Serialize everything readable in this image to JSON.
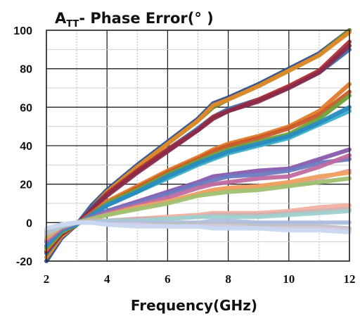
{
  "chart_data": {
    "type": "line",
    "title_main": "A",
    "title_sub": "TT",
    "title_rest": "- Phase Error(°  )",
    "xlabel": "Frequency(GHz)",
    "ylabel": "",
    "xlim": [
      2,
      12
    ],
    "ylim": [
      -20,
      100
    ],
    "x_ticks": [
      2,
      4,
      6,
      8,
      10,
      12
    ],
    "y_ticks": [
      -20,
      0,
      20,
      40,
      60,
      80,
      100
    ],
    "x_minor_grid": [
      3,
      5,
      7,
      9,
      11
    ],
    "y_minor_grid": [
      -10,
      10,
      30,
      50,
      70,
      90
    ],
    "grid": true,
    "legend": "none",
    "x": [
      2,
      2.5,
      3,
      3.5,
      4,
      5,
      6,
      7,
      7.5,
      8,
      9,
      10,
      11,
      12
    ],
    "series": [
      {
        "color": "#2f4f8f",
        "values": [
          -20,
          -8,
          -1,
          9,
          17,
          30,
          42,
          54,
          62,
          65,
          72,
          80,
          88,
          100
        ]
      },
      {
        "color": "#6a8a2a",
        "values": [
          -18,
          -7,
          -1,
          8,
          16,
          29,
          41,
          53,
          60,
          64,
          71,
          79,
          87,
          100
        ]
      },
      {
        "color": "#e08a2a",
        "values": [
          -18,
          -7,
          -1,
          8,
          16,
          29,
          41,
          53,
          61,
          64,
          71,
          79,
          87,
          99
        ]
      },
      {
        "color": "#3a6fb0",
        "values": [
          -16,
          -6,
          -1,
          8,
          15,
          27,
          38,
          49,
          55,
          59,
          64,
          70,
          78,
          90
        ]
      },
      {
        "color": "#b03030",
        "values": [
          -15,
          -6,
          -1,
          7,
          15,
          27,
          38,
          48,
          55,
          58,
          64,
          71,
          79,
          94
        ]
      },
      {
        "color": "#8a2a4a",
        "values": [
          -15,
          -6,
          -1,
          7,
          14,
          26,
          37,
          48,
          54,
          58,
          63,
          70,
          78,
          92
        ]
      },
      {
        "color": "#e07b2a",
        "values": [
          -14,
          -5,
          -1,
          5,
          11,
          19,
          27,
          34,
          38,
          41,
          45,
          50,
          58,
          72
        ]
      },
      {
        "color": "#c95a2a",
        "values": [
          -13,
          -5,
          -1,
          5,
          10,
          18,
          26,
          33,
          37,
          40,
          44,
          49,
          56,
          68
        ]
      },
      {
        "color": "#6fa03a",
        "values": [
          -13,
          -5,
          -1,
          4,
          10,
          17,
          25,
          32,
          35,
          38,
          42,
          46,
          54,
          66
        ]
      },
      {
        "color": "#3ab0c9",
        "values": [
          -12,
          -4,
          -1,
          4,
          9,
          16,
          23,
          30,
          33,
          36,
          40,
          44,
          51,
          58
        ]
      },
      {
        "color": "#2a8abf",
        "values": [
          -12,
          -4,
          -1,
          4,
          9,
          16,
          24,
          31,
          34,
          37,
          41,
          45,
          52,
          60
        ]
      },
      {
        "color": "#8a5aaf",
        "values": [
          -10,
          -3,
          0,
          3,
          6,
          11,
          16,
          21,
          24,
          25,
          27,
          28,
          33,
          38
        ]
      },
      {
        "color": "#6a7abf",
        "values": [
          -10,
          -3,
          0,
          3,
          6,
          10,
          15,
          20,
          22,
          24,
          25,
          27,
          31,
          33
        ]
      },
      {
        "color": "#c06aa0",
        "values": [
          -9,
          -3,
          0,
          2,
          5,
          9,
          13,
          18,
          20,
          21,
          23,
          24,
          29,
          35
        ]
      },
      {
        "color": "#e0a0a0",
        "values": [
          -8,
          -2,
          0,
          2,
          4,
          8,
          11,
          15,
          17,
          18,
          19,
          20,
          23,
          27
        ]
      },
      {
        "color": "#f0a060",
        "values": [
          -8,
          -2,
          0,
          2,
          4,
          8,
          11,
          15,
          17,
          18,
          19,
          21,
          24,
          26
        ]
      },
      {
        "color": "#a0c070",
        "values": [
          -7,
          -2,
          0,
          2,
          4,
          7,
          10,
          14,
          15,
          16,
          17,
          19,
          21,
          23
        ]
      },
      {
        "color": "#f0b0a0",
        "values": [
          -6,
          -2,
          0,
          1,
          1,
          2,
          3,
          4,
          5,
          5,
          5,
          6,
          8,
          9
        ]
      },
      {
        "color": "#d0b0b0",
        "values": [
          -6,
          -2,
          0,
          1,
          1,
          2,
          2,
          3,
          4,
          4,
          4,
          5,
          6,
          7
        ]
      },
      {
        "color": "#a0d0d0",
        "values": [
          -5,
          -2,
          0,
          0,
          1,
          1,
          2,
          3,
          3,
          3,
          3,
          4,
          5,
          6
        ]
      },
      {
        "color": "#b0c0e0",
        "values": [
          -5,
          -1,
          0,
          0,
          0,
          0,
          0,
          0,
          1,
          1,
          0,
          0,
          0,
          0
        ]
      },
      {
        "color": "#c0c0c0",
        "values": [
          -4,
          -1,
          0,
          0,
          -1,
          -1,
          -1,
          -1,
          -1,
          -1,
          -2,
          -2,
          -2,
          -3
        ]
      },
      {
        "color": "#d8c8e0",
        "values": [
          -3,
          -1,
          0,
          0,
          -1,
          -1,
          -2,
          -2,
          -2,
          -2,
          -3,
          -3,
          -3,
          -4
        ]
      },
      {
        "color": "#c8d8f0",
        "values": [
          -3,
          -1,
          0,
          0,
          -1,
          -2,
          -2,
          -2,
          -3,
          -3,
          -3,
          -4,
          -4,
          -5
        ]
      }
    ]
  }
}
